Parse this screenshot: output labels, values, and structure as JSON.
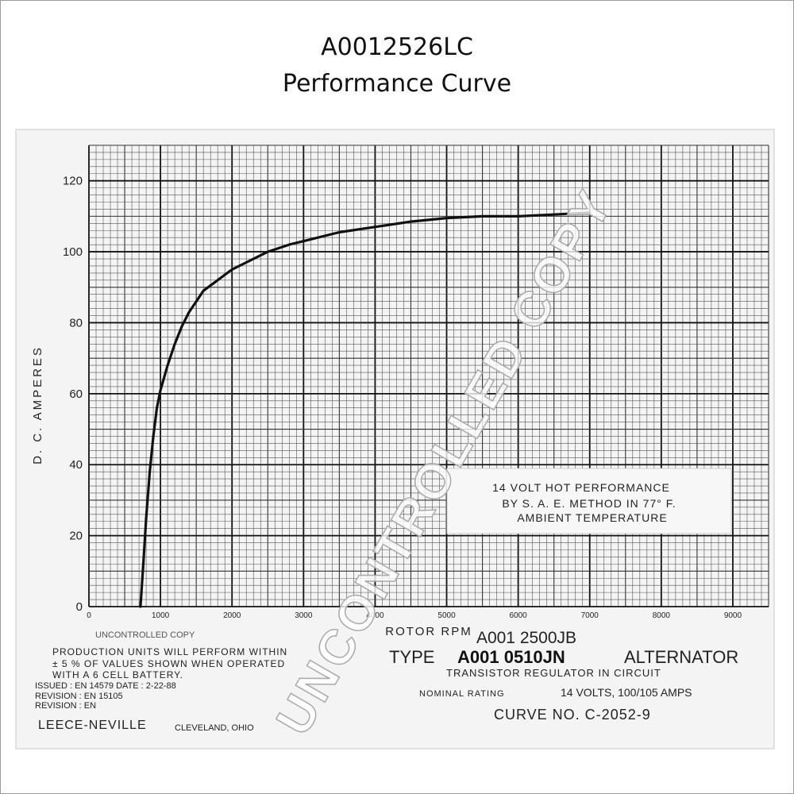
{
  "header": {
    "part_number": "A0012526LC",
    "subtitle": "Performance Curve"
  },
  "chart_data": {
    "type": "line",
    "title": "",
    "xlabel": "ROTOR RPM",
    "ylabel": "D. C. AMPERES",
    "xlim": [
      0,
      9500
    ],
    "ylim": [
      0,
      130
    ],
    "x_ticks": [
      "0",
      "1000",
      "2000",
      "3000",
      "4000",
      "5000",
      "6000",
      "7000",
      "8000",
      "9000"
    ],
    "y_ticks": [
      "0",
      "20",
      "40",
      "60",
      "80",
      "100",
      "120"
    ],
    "grid": true,
    "series": [
      {
        "x": [
          720,
          760,
          800,
          850,
          900,
          950,
          1000,
          1100,
          1200,
          1300,
          1400,
          1500,
          1600,
          1800,
          2000,
          2200,
          2500,
          2800,
          3000,
          3500,
          4000,
          4500,
          5000,
          5500,
          6000,
          6500,
          7000
        ],
        "values": [
          0,
          12,
          25,
          38,
          48,
          56,
          61,
          68,
          74,
          79,
          83,
          86,
          89,
          92,
          95,
          97,
          100,
          102,
          103,
          105.5,
          107,
          108.5,
          109.5,
          110,
          110,
          110.5,
          111
        ]
      }
    ]
  },
  "annotation": {
    "line1": "14 VOLT HOT PERFORMANCE",
    "line2": "BY S. A. E. METHOD IN 77° F.",
    "line3": "AMBIENT TEMPERATURE"
  },
  "footer": {
    "uncontrolled_small": "UNCONTROLLED COPY",
    "production_line1": "PRODUCTION UNITS WILL PERFORM WITHIN",
    "production_line2": "± 5 % OF VALUES SHOWN WHEN OPERATED",
    "production_line3": "WITH A  6  CELL BATTERY.",
    "issued": "ISSUED : EN 14579   DATE : 2-22-88",
    "revision1": "REVISION : EN 15105",
    "revision2": "REVISION : EN",
    "company": "LEECE-NEVILLE",
    "city": "CLEVELAND, OHIO",
    "alt_type": "A001 2500JB",
    "type_prefix": "TYPE",
    "type_value": "A001 0510JN",
    "type_suffix": "ALTERNATOR",
    "regulator": "TRANSISTOR REGULATOR IN CIRCUIT",
    "rating_label": "NOMINAL RATING",
    "rating_value": "14 VOLTS, 100/105 AMPS",
    "curve_number": "CURVE NO. C-2052-9"
  },
  "watermark": "UNCONTROLLED COPY"
}
